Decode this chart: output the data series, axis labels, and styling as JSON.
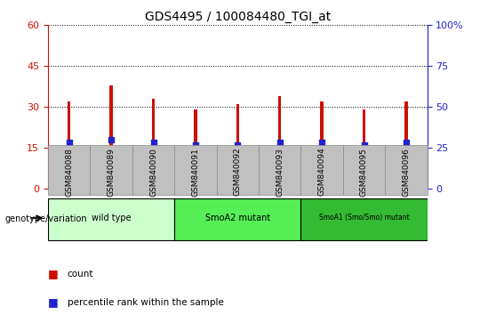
{
  "title": "GDS4495 / 100084480_TGI_at",
  "categories": [
    "GSM840088",
    "GSM840089",
    "GSM840090",
    "GSM840091",
    "GSM840092",
    "GSM840093",
    "GSM840094",
    "GSM840095",
    "GSM840096"
  ],
  "counts": [
    32,
    38,
    33,
    29,
    31,
    34,
    32,
    29,
    32
  ],
  "percentile_ranks": [
    17,
    18,
    17,
    16,
    16,
    17,
    17,
    16,
    17
  ],
  "ylim_left": [
    0,
    60
  ],
  "ylim_right": [
    0,
    100
  ],
  "yticks_left": [
    0,
    15,
    30,
    45,
    60
  ],
  "ytick_labels_left": [
    "0",
    "15",
    "30",
    "45",
    "60"
  ],
  "yticks_right_vals": [
    0,
    25,
    50,
    75,
    100
  ],
  "ytick_labels_right": [
    "0",
    "25",
    "50",
    "75",
    "100%"
  ],
  "bar_color": "#CC1100",
  "blue_color": "#2222CC",
  "left_axis_color": "#CC1100",
  "right_axis_color": "#2222CC",
  "groups": [
    {
      "label": "wild type",
      "start": 0,
      "end": 3,
      "color": "#CCFFCC"
    },
    {
      "label": "SmoA2 mutant",
      "start": 3,
      "end": 6,
      "color": "#55EE55"
    },
    {
      "label": "SmoA1 (Smo/Smo) mutant",
      "start": 6,
      "end": 9,
      "color": "#33BB33"
    }
  ],
  "group_label": "genotype/variation",
  "legend_count": "count",
  "legend_percentile": "percentile rank within the sample",
  "bar_width": 0.07,
  "tick_area_color": "#C0C0C0"
}
